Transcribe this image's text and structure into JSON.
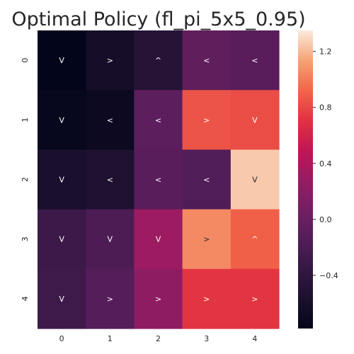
{
  "chart_data": {
    "type": "heatmap",
    "title": "Optimal Policy (fl_pi_5x5_0.95)",
    "xlabel": "",
    "ylabel": "",
    "x_ticks": [
      "0",
      "1",
      "2",
      "3",
      "4"
    ],
    "y_ticks": [
      "0",
      "1",
      "2",
      "3",
      "4"
    ],
    "values": [
      [
        -0.78,
        -0.62,
        -0.48,
        -0.05,
        -0.1
      ],
      [
        -0.75,
        -0.7,
        -0.08,
        0.85,
        0.82
      ],
      [
        -0.58,
        -0.55,
        -0.1,
        -0.15,
        1.25
      ],
      [
        -0.3,
        -0.18,
        0.3,
        1.05,
        0.9
      ],
      [
        -0.28,
        -0.12,
        0.22,
        0.72,
        0.72
      ]
    ],
    "annotations": [
      [
        "V",
        ">",
        "^",
        "<",
        "<"
      ],
      [
        "V",
        "<",
        "<",
        ">",
        "V"
      ],
      [
        "V",
        "<",
        "<",
        "<",
        "V"
      ],
      [
        "V",
        "V",
        "V",
        ">",
        "^"
      ],
      [
        "V",
        ">",
        ">",
        ">",
        ">"
      ]
    ],
    "colormap": "rocket",
    "colorbar": {
      "range": [
        -0.78,
        1.35
      ],
      "ticks": [
        -0.4,
        0.0,
        0.4,
        0.8,
        1.2
      ],
      "tick_labels": [
        "−0.4",
        "0.0",
        "0.4",
        "0.8",
        "1.2"
      ]
    },
    "grid": false,
    "legend": "colorbar-right"
  }
}
